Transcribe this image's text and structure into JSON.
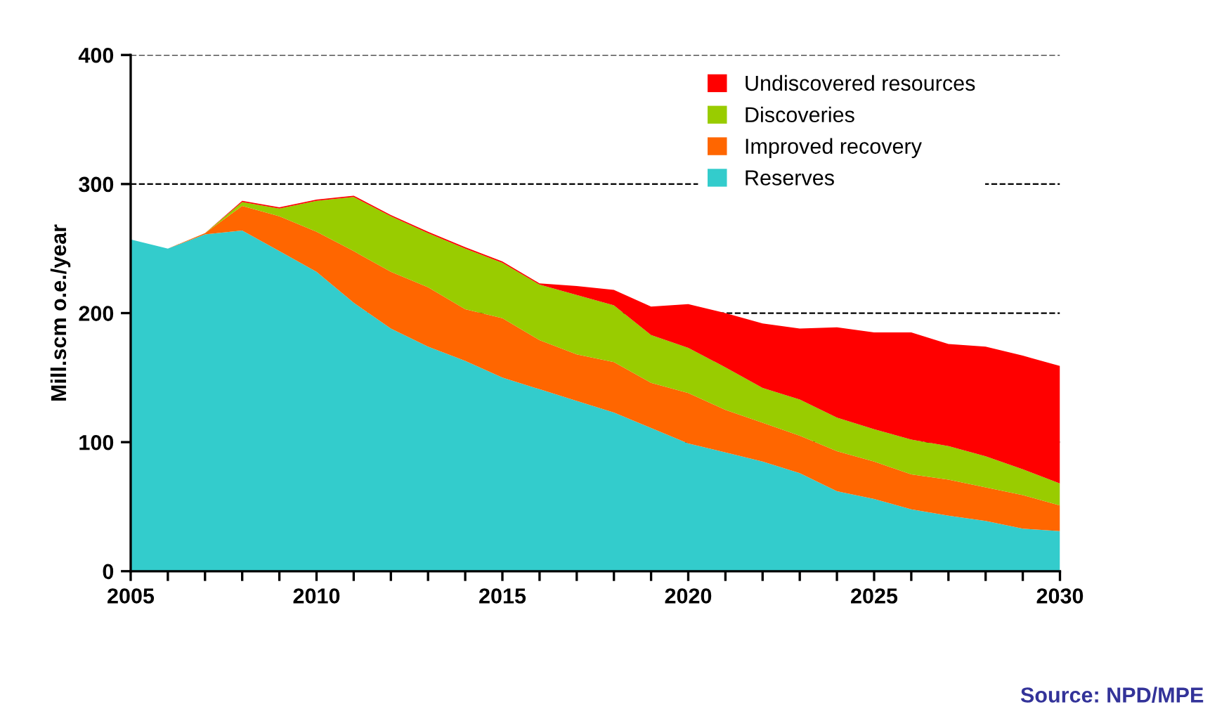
{
  "chart_data": {
    "type": "area",
    "stacked": true,
    "ylabel": "Mill.scm o.e./year",
    "x": [
      2005,
      2006,
      2007,
      2008,
      2009,
      2010,
      2011,
      2012,
      2013,
      2014,
      2015,
      2016,
      2017,
      2018,
      2019,
      2020,
      2021,
      2022,
      2023,
      2024,
      2025,
      2026,
      2027,
      2028,
      2029,
      2030
    ],
    "series": [
      {
        "name": "Reserves",
        "color": "#33cccc",
        "values": [
          257,
          250,
          261,
          264,
          248,
          232,
          208,
          188,
          174,
          163,
          150,
          141,
          132,
          123,
          111,
          99,
          92,
          85,
          76,
          62,
          56,
          48,
          43,
          39,
          33,
          31
        ]
      },
      {
        "name": "Improved recovery",
        "color": "#ff6600",
        "values": [
          0,
          0,
          1,
          19,
          27,
          31,
          40,
          44,
          46,
          40,
          46,
          38,
          36,
          39,
          35,
          39,
          33,
          30,
          29,
          31,
          29,
          27,
          28,
          26,
          26,
          20
        ]
      },
      {
        "name": "Discoveries",
        "color": "#99cc00",
        "values": [
          0,
          0,
          0,
          3,
          6,
          24,
          42,
          43,
          42,
          47,
          43,
          43,
          46,
          44,
          37,
          35,
          33,
          27,
          28,
          26,
          25,
          27,
          26,
          24,
          20,
          17
        ]
      },
      {
        "name": "Undiscovered resources",
        "color": "#ff0000",
        "values": [
          0,
          0,
          0,
          1,
          1,
          1,
          1,
          1,
          1,
          1,
          1,
          1,
          7,
          12,
          22,
          34,
          42,
          50,
          55,
          70,
          75,
          83,
          79,
          85,
          88,
          91
        ]
      }
    ],
    "xlim": [
      2005,
      2030
    ],
    "xticks": [
      2005,
      {
        "value": 2006,
        "label": null
      },
      {
        "value": 2007,
        "label": null
      },
      {
        "value": 2008,
        "label": null
      },
      {
        "value": 2009,
        "label": null
      },
      2010,
      {
        "value": 2011,
        "label": null
      },
      {
        "value": 2012,
        "label": null
      },
      {
        "value": 2013,
        "label": null
      },
      {
        "value": 2014,
        "label": null
      },
      2015,
      {
        "value": 2016,
        "label": null
      },
      {
        "value": 2017,
        "label": null
      },
      {
        "value": 2018,
        "label": null
      },
      {
        "value": 2019,
        "label": null
      },
      2020,
      {
        "value": 2021,
        "label": null
      },
      {
        "value": 2022,
        "label": null
      },
      {
        "value": 2023,
        "label": null
      },
      {
        "value": 2024,
        "label": null
      },
      2025,
      {
        "value": 2026,
        "label": null
      },
      {
        "value": 2027,
        "label": null
      },
      {
        "value": 2028,
        "label": null
      },
      {
        "value": 2029,
        "label": null
      },
      2030
    ],
    "ylim": [
      0,
      400
    ],
    "yticks": [
      0,
      100,
      200,
      300,
      400
    ],
    "grid": "y",
    "line_style": "dashed",
    "legend": "top right",
    "annotations": [
      "Source: NPD/MPE"
    ]
  }
}
